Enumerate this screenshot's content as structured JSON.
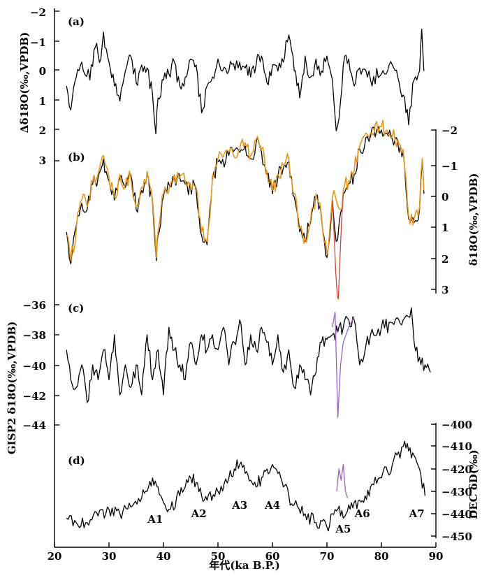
{
  "chart_data": {
    "type": "line",
    "x_axis": {
      "label": "年代(ka B.P.)",
      "range": [
        20,
        90
      ],
      "ticks": [
        20,
        30,
        40,
        50,
        60,
        70,
        80,
        90
      ],
      "tick_labels": [
        "20",
        "30",
        "40",
        "50",
        "60",
        "70",
        "80",
        "90"
      ]
    },
    "panels": [
      {
        "id": "a",
        "label": "(a)",
        "ylabel": "Δδ18O(‰,VPDB)",
        "ylim": [
          3,
          -2
        ],
        "y_ticks": [
          -2,
          -1,
          0,
          1,
          2,
          3
        ],
        "y_tick_labels": [
          "−2",
          "−1",
          "0",
          "1",
          "2",
          "3"
        ],
        "axis_side": "left",
        "series": [
          {
            "name": "Δδ18O",
            "color": "#000000",
            "x": [
              22.2,
              23.0,
              24.0,
              25.0,
              26.5,
              27.5,
              28.5,
              29.0,
              30.0,
              31.0,
              32.0,
              33.0,
              34.0,
              35.0,
              36.0,
              37.0,
              38.0,
              38.6,
              39.0,
              40.0,
              41.0,
              42.0,
              43.0,
              44.0,
              45.0,
              46.0,
              47.0,
              47.5,
              48.0,
              49.0,
              50.0,
              52.0,
              54.0,
              55.0,
              56.0,
              57.0,
              58.0,
              59.0,
              60.0,
              61.0,
              62.0,
              63.0,
              64.0,
              65.0,
              66.0,
              67.0,
              68.0,
              69.0,
              70.0,
              71.0,
              71.7,
              72.5,
              73.0,
              74.0,
              75.0,
              76.0,
              78.0,
              80.0,
              82.0,
              83.0,
              84.0,
              85.0,
              86.0,
              87.0,
              87.4,
              87.8
            ],
            "y": [
              0.5,
              1.3,
              0.2,
              -0.3,
              0.3,
              -0.8,
              -0.4,
              -1.3,
              -0.3,
              0.5,
              1.0,
              0.0,
              -0.5,
              0.4,
              -0.2,
              -0.1,
              0.8,
              2.1,
              0.9,
              0.3,
              0.1,
              -0.3,
              0.5,
              0.2,
              -0.4,
              -0.2,
              1.4,
              1.2,
              0.5,
              0.2,
              -0.4,
              0.0,
              -0.3,
              -0.1,
              0.2,
              -0.2,
              -0.5,
              0.4,
              -0.2,
              0.0,
              -0.3,
              -1.2,
              0.0,
              0.9,
              -0.5,
              0.2,
              -0.4,
              0.0,
              -0.5,
              0.3,
              2.0,
              1.0,
              -0.2,
              -0.4,
              0.5,
              -0.1,
              0.3,
              0.1,
              -0.2,
              0.2,
              0.8,
              1.8,
              0.3,
              0.0,
              -1.4,
              0.0
            ]
          }
        ]
      },
      {
        "id": "b",
        "label": "(b)",
        "ylabel": "δ18O(‰,VPDB)",
        "ylim": [
          3.6,
          -2.2
        ],
        "y_ticks": [
          -2,
          -1,
          0,
          1,
          2,
          3
        ],
        "y_tick_labels": [
          "−2",
          "−1",
          "0",
          "1",
          "2",
          "3"
        ],
        "axis_side": "right",
        "series": [
          {
            "name": "δ18O (black)",
            "color": "#000000",
            "x": [
              22.2,
              23.0,
              24.0,
              25.0,
              26.0,
              27.0,
              28.0,
              29.0,
              30.0,
              31.0,
              32.0,
              33.0,
              34.0,
              35.0,
              36.0,
              37.0,
              38.0,
              38.7,
              39.0,
              40.0,
              42.0,
              44.0,
              46.0,
              47.0,
              48.0,
              49.0,
              50.0,
              52.0,
              54.0,
              55.0,
              56.0,
              57.0,
              58.0,
              59.0,
              60.0,
              61.0,
              62.0,
              63.0,
              64.0,
              65.0,
              66.0,
              67.0,
              68.0,
              69.0,
              70.0,
              71.0,
              71.7,
              72.5,
              73.0,
              74.0,
              75.0,
              76.0,
              78.0,
              80.0,
              81.0,
              82.0,
              83.0,
              84.0,
              85.0,
              86.0,
              87.0,
              87.5,
              87.8
            ],
            "y": [
              1.2,
              2.2,
              1.0,
              0.3,
              0.5,
              -0.3,
              -0.5,
              -1.1,
              -0.4,
              0.2,
              -0.5,
              -0.2,
              -0.6,
              0.5,
              -0.1,
              -0.6,
              0.3,
              2.1,
              1.3,
              0.1,
              -0.5,
              -0.3,
              -0.1,
              1.3,
              1.6,
              -0.5,
              -1.0,
              -1.2,
              -1.3,
              -1.5,
              -1.1,
              -1.6,
              -1.3,
              -0.6,
              0.0,
              -0.5,
              -0.8,
              -1.0,
              0.1,
              1.2,
              1.5,
              0.9,
              0.1,
              0.8,
              2.0,
              0.2,
              1.5,
              0.6,
              0.0,
              -0.3,
              -0.6,
              -1.4,
              -1.8,
              -2.0,
              -1.9,
              -1.7,
              -1.6,
              -1.3,
              0.8,
              0.9,
              0.5,
              -1.0,
              0.0
            ]
          },
          {
            "name": "δ18O (orange)",
            "color": "#e6951d",
            "x": [
              22.2,
              23.0,
              24.0,
              25.0,
              26.0,
              27.0,
              28.0,
              29.0,
              30.0,
              31.0,
              32.0,
              33.0,
              34.0,
              35.0,
              36.0,
              37.0,
              38.0,
              38.7,
              39.0,
              40.0,
              42.0,
              44.0,
              46.0,
              47.0,
              48.0,
              49.0,
              50.0,
              52.0,
              54.0,
              55.0,
              56.0,
              57.0,
              58.0,
              59.0,
              60.0,
              61.0,
              62.0,
              63.0,
              64.0,
              65.0,
              66.0,
              67.0,
              68.0,
              69.0,
              70.0,
              71.0,
              72.5,
              73.0,
              74.0,
              75.0,
              76.0,
              78.0,
              80.0,
              81.0,
              82.0,
              83.0,
              84.0,
              85.0,
              86.0,
              87.0,
              87.5,
              87.8
            ],
            "y": [
              1.3,
              2.1,
              1.1,
              0.2,
              0.4,
              -0.4,
              -0.6,
              -1.2,
              -0.5,
              0.1,
              -0.6,
              -0.3,
              -0.5,
              0.4,
              -0.2,
              -0.7,
              0.2,
              2.0,
              1.2,
              0.0,
              -0.6,
              -0.4,
              -0.2,
              1.2,
              1.5,
              -0.6,
              -1.1,
              -1.3,
              -1.4,
              -1.6,
              -1.2,
              -1.7,
              -1.4,
              -0.7,
              -0.1,
              -0.6,
              -0.9,
              -1.1,
              0.0,
              1.1,
              1.4,
              0.8,
              0.0,
              0.7,
              1.9,
              0.1,
              0.5,
              -0.1,
              -0.4,
              -0.7,
              -1.5,
              -1.9,
              -2.1,
              -2.0,
              -1.8,
              -1.7,
              -1.4,
              0.7,
              0.8,
              0.4,
              -1.1,
              -0.1
            ]
          },
          {
            "name": "δ18O (red)",
            "color": "#d04535",
            "x": [
              71.0,
              71.3,
              71.6,
              71.9,
              72.1,
              72.4,
              72.7,
              73.0
            ],
            "y": [
              0.2,
              1.2,
              2.4,
              3.2,
              3.3,
              2.0,
              0.8,
              0.0
            ]
          }
        ]
      },
      {
        "id": "c",
        "label": "(c)",
        "ylabel": "GISP2 δ18O(‰,VPDB)",
        "ylim": [
          -44.5,
          -35.5
        ],
        "y_ticks": [
          -44,
          -42,
          -40,
          -38,
          -36
        ],
        "y_tick_labels": [
          "−44",
          "−42",
          "−40",
          "−38",
          "−36"
        ],
        "axis_side": "left",
        "series": [
          {
            "name": "GISP2 δ18O",
            "color": "#000000",
            "x": [
              22.2,
              23.0,
              24.0,
              25.0,
              26.0,
              27.0,
              28.0,
              29.0,
              30.0,
              31.0,
              32.0,
              33.0,
              34.0,
              35.0,
              36.0,
              37.0,
              38.0,
              39.0,
              40.0,
              41.0,
              42.0,
              43.0,
              44.0,
              45.0,
              46.0,
              47.0,
              48.0,
              49.0,
              50.0,
              51.0,
              52.0,
              53.0,
              54.0,
              55.0,
              56.0,
              57.0,
              58.0,
              59.0,
              60.0,
              61.0,
              62.0,
              63.0,
              64.0,
              65.0,
              66.0,
              67.0,
              68.0,
              69.0,
              70.0,
              71.0,
              72.0,
              73.0,
              74.0,
              75.0,
              76.0,
              78.0,
              80.0,
              82.0,
              84.0,
              85.5,
              86.0,
              87.0,
              88.0,
              89.0
            ],
            "y": [
              -39,
              -41,
              -41.5,
              -40,
              -42.5,
              -40,
              -41,
              -39,
              -41,
              -38,
              -42,
              -40,
              -41.5,
              -40,
              -42,
              -38,
              -41,
              -39,
              -42,
              -37.5,
              -39,
              -40,
              -41,
              -38.5,
              -40,
              -38,
              -39,
              -38,
              -39,
              -37.5,
              -40,
              -38.5,
              -37,
              -40,
              -38,
              -39,
              -37.5,
              -38.5,
              -40,
              -38,
              -40.5,
              -39,
              -41.5,
              -40,
              -41,
              -42,
              -40.5,
              -38.5,
              -38.3,
              -38,
              -37.8,
              -37.5,
              -37,
              -37,
              -40,
              -38,
              -37.5,
              -37.2,
              -37,
              -36.2,
              -38.5,
              -39.5,
              -40,
              -40.5
            ]
          },
          {
            "name": "GISP2 δ18O (purple)",
            "color": "#9a62c0",
            "x": [
              71.0,
              71.5,
              72.0,
              72.5,
              73.0,
              74.0,
              75.0
            ],
            "y": [
              -37.5,
              -36.5,
              -43.5,
              -40,
              -38.5,
              -37.5,
              -36.8
            ]
          }
        ]
      },
      {
        "id": "d",
        "label": "(d)",
        "ylabel": "DEC δD(‰)",
        "ylim": [
          -452,
          -398
        ],
        "y_ticks": [
          -450,
          -440,
          -430,
          -420,
          -410,
          -400
        ],
        "y_tick_labels": [
          "−450",
          "−440",
          "−430",
          "−420",
          "−410",
          "−400"
        ],
        "axis_side": "right",
        "annotations": [
          {
            "text": "A1",
            "x": 38.5
          },
          {
            "text": "A2",
            "x": 46.5
          },
          {
            "text": "A3",
            "x": 54.0
          },
          {
            "text": "A4",
            "x": 60.0
          },
          {
            "text": "A5",
            "x": 73.0
          },
          {
            "text": "A6",
            "x": 76.5
          },
          {
            "text": "A7",
            "x": 86.5
          }
        ],
        "series": [
          {
            "name": "DEC δD",
            "color": "#000000",
            "x": [
              22.2,
              24.0,
              26.0,
              28.0,
              30.0,
              32.0,
              34.0,
              36.0,
              37.0,
              38.0,
              39.0,
              40.0,
              41.0,
              43.0,
              44.0,
              45.0,
              46.0,
              47.0,
              48.0,
              50.0,
              52.0,
              53.0,
              54.0,
              55.0,
              56.0,
              57.0,
              58.0,
              59.0,
              60.0,
              61.0,
              62.0,
              63.0,
              64.0,
              66.0,
              68.0,
              70.0,
              71.0,
              72.0,
              73.0,
              74.0,
              75.0,
              76.0,
              77.0,
              78.0,
              80.0,
              82.0,
              84.0,
              85.0,
              86.0,
              87.0,
              88.0
            ],
            "y": [
              -442,
              -444,
              -444,
              -441,
              -438,
              -440,
              -437,
              -433,
              -430,
              -424,
              -428,
              -435,
              -438,
              -432,
              -428,
              -424,
              -426,
              -432,
              -434,
              -430,
              -424,
              -420,
              -418,
              -422,
              -425,
              -428,
              -424,
              -420,
              -418,
              -422,
              -428,
              -432,
              -436,
              -440,
              -444,
              -446,
              -440,
              -438,
              -442,
              -436,
              -435,
              -434,
              -432,
              -428,
              -424,
              -418,
              -410,
              -412,
              -414,
              -420,
              -432
            ]
          },
          {
            "name": "DEC δD (purple)",
            "color": "#9a62c0",
            "x": [
              71.8,
              72.2,
              72.6,
              73.0,
              73.4,
              73.8
            ],
            "y": [
              -430,
              -420,
              -425,
              -418,
              -430,
              -433
            ]
          }
        ]
      }
    ]
  }
}
